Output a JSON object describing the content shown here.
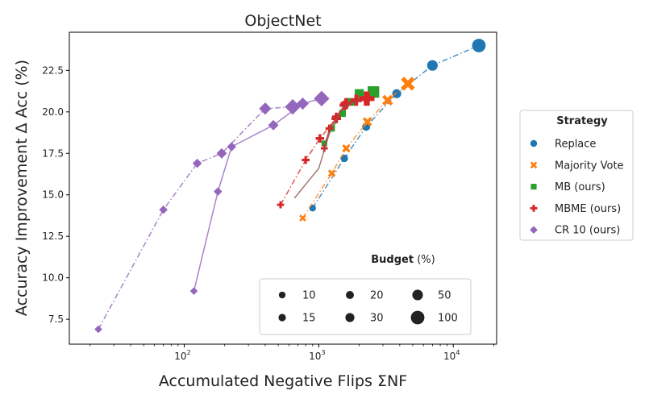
{
  "chart_data": {
    "type": "scatter",
    "title": "ObjectNet",
    "xlabel": "Accumulated Negative Flips ΣNF",
    "ylabel": "Accuracy Improvement Δ Acc (%)",
    "xscale": "log",
    "xlim": [
      14,
      21000
    ],
    "ylim": [
      6.0,
      24.8
    ],
    "xtick_labels": [
      {
        "value": 100,
        "base": "10",
        "exp": "2"
      },
      {
        "value": 1000,
        "base": "10",
        "exp": "3"
      },
      {
        "value": 10000,
        "base": "10",
        "exp": "4"
      }
    ],
    "yticks": [
      7.5,
      10.0,
      12.5,
      15.0,
      17.5,
      20.0,
      22.5
    ],
    "ytick_labels": [
      "7.5",
      "10.0",
      "12.5",
      "15.0",
      "17.5",
      "20.0",
      "22.5"
    ],
    "legend_strategy": {
      "title": "Strategy",
      "position": "right",
      "entries": [
        {
          "name": "Replace",
          "color": "#1f77b4",
          "marker": "circle"
        },
        {
          "name": "Majority Vote",
          "color": "#ff7f0e",
          "marker": "x"
        },
        {
          "name": "MB (ours)",
          "color": "#2ca02c",
          "marker": "square"
        },
        {
          "name": "MBME (ours)",
          "color": "#d62728",
          "marker": "plus"
        },
        {
          "name": "CR 10 (ours)",
          "color": "#9467bd",
          "marker": "diamond"
        }
      ]
    },
    "legend_budget": {
      "title_bold": "Budget",
      "title_rest": " (%)",
      "position": "lower-center",
      "entries": [
        {
          "label": "10",
          "budget": 10
        },
        {
          "label": "15",
          "budget": 15
        },
        {
          "label": "20",
          "budget": 20
        },
        {
          "label": "30",
          "budget": 30
        },
        {
          "label": "50",
          "budget": 50
        },
        {
          "label": "100",
          "budget": 100
        }
      ]
    },
    "line_colors": {
      "dashdot_default": "#1f77b4"
    },
    "series": [
      {
        "name": "Replace",
        "color": "#1f77b4",
        "marker": "circle",
        "linestyle": "dashdot",
        "points": [
          [
            900,
            14.2
          ],
          [
            1550,
            17.2
          ],
          [
            2250,
            19.1
          ],
          [
            3800,
            21.1
          ],
          [
            7000,
            22.8
          ],
          [
            15500,
            24.0
          ]
        ],
        "budgets": [
          10,
          15,
          20,
          30,
          50,
          100
        ]
      },
      {
        "name": "Majority Vote",
        "color": "#ff7f0e",
        "marker": "x",
        "linestyle": "dashdot",
        "points": [
          [
            760,
            13.6
          ],
          [
            1250,
            16.3
          ],
          [
            1600,
            17.8
          ],
          [
            2300,
            19.4
          ],
          [
            3250,
            20.7
          ],
          [
            4600,
            21.7
          ]
        ],
        "budgets": [
          10,
          15,
          20,
          30,
          50,
          100
        ]
      },
      {
        "name": "MB (ours)",
        "color": "#2ca02c",
        "marker": "square",
        "linestyle": "solid",
        "points": [
          [
            1100,
            18.1
          ],
          [
            1250,
            19.0
          ],
          [
            1500,
            19.9
          ],
          [
            1750,
            20.6
          ],
          [
            2000,
            21.1
          ],
          [
            2550,
            21.2
          ]
        ],
        "budgets": [
          10,
          15,
          20,
          30,
          50,
          100
        ]
      },
      {
        "name": "MBME (ours)",
        "color": "#d62728",
        "marker": "plus",
        "linestyle": "solid",
        "points": [
          [
            1100,
            17.8
          ],
          [
            1200,
            19.0
          ],
          [
            1350,
            19.7
          ],
          [
            1550,
            20.4
          ],
          [
            1900,
            20.7
          ],
          [
            2250,
            20.8
          ]
        ],
        "budgets": [
          10,
          15,
          20,
          30,
          50,
          100
        ]
      },
      {
        "name": "MBME (ours) dash-dot",
        "color": "#d62728",
        "marker": "plus",
        "linestyle": "dashdot",
        "points": [
          [
            520,
            14.4
          ],
          [
            800,
            17.1
          ],
          [
            1020,
            18.4
          ],
          [
            1350,
            19.6
          ],
          [
            1600,
            20.5
          ],
          [
            2300,
            20.8
          ]
        ],
        "budgets": [
          10,
          15,
          20,
          30,
          50,
          100
        ]
      },
      {
        "name": "MB (ours) brown",
        "color": "#8c564b",
        "marker": "none",
        "linestyle": "solid",
        "points": [
          [
            660,
            14.8
          ],
          [
            1000,
            16.6
          ],
          [
            1230,
            19.0
          ],
          [
            1530,
            20.3
          ],
          [
            2000,
            20.7
          ]
        ],
        "budgets": [
          10,
          15,
          20,
          30,
          50
        ]
      },
      {
        "name": "CR 10 (ours)",
        "color": "#9467bd",
        "marker": "diamond",
        "linestyle": "dashdot",
        "points": [
          [
            23,
            6.9
          ],
          [
            70,
            14.1
          ],
          [
            125,
            16.9
          ],
          [
            190,
            17.5
          ],
          [
            400,
            20.2
          ],
          [
            640,
            20.3
          ]
        ],
        "budgets": [
          10,
          15,
          20,
          30,
          50,
          100
        ]
      },
      {
        "name": "CR 10 (ours) solid",
        "color": "#9467bd",
        "marker": "diamond",
        "linestyle": "solid",
        "points": [
          [
            118,
            9.2
          ],
          [
            178,
            15.2
          ],
          [
            225,
            17.9
          ],
          [
            460,
            19.2
          ],
          [
            760,
            20.5
          ],
          [
            1050,
            20.8
          ]
        ],
        "budgets": [
          10,
          15,
          20,
          30,
          50,
          100
        ]
      }
    ]
  }
}
